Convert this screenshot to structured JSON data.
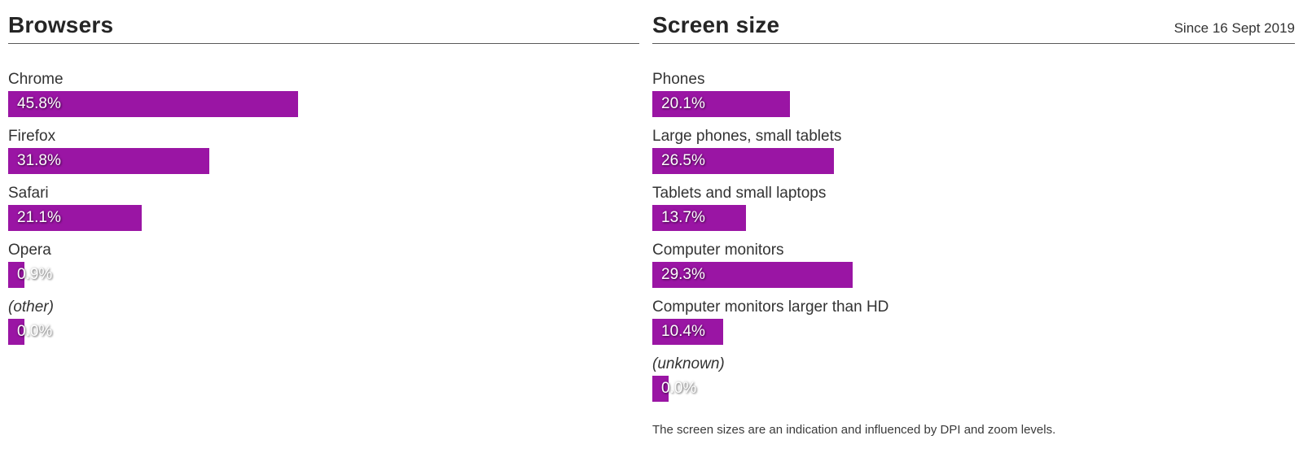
{
  "accent_color": "#9a15a4",
  "browsers": {
    "title": "Browsers",
    "rows": [
      {
        "label": "Chrome",
        "value": 45.8,
        "display": "45.8%"
      },
      {
        "label": "Firefox",
        "value": 31.8,
        "display": "31.8%"
      },
      {
        "label": "Safari",
        "value": 21.1,
        "display": "21.1%"
      },
      {
        "label": "Opera",
        "value": 0.9,
        "display": "0.9%"
      },
      {
        "label": "(other)",
        "value": 0.0,
        "display": "0.0%"
      }
    ]
  },
  "screen_size": {
    "title": "Screen size",
    "since": "Since 16 Sept 2019",
    "rows": [
      {
        "label": "Phones",
        "value": 20.1,
        "display": "20.1%"
      },
      {
        "label": "Large phones, small tablets",
        "value": 26.5,
        "display": "26.5%"
      },
      {
        "label": "Tablets and small laptops",
        "value": 13.7,
        "display": "13.7%"
      },
      {
        "label": "Computer monitors",
        "value": 29.3,
        "display": "29.3%"
      },
      {
        "label": "Computer monitors larger than HD",
        "value": 10.4,
        "display": "10.4%"
      },
      {
        "label": "(unknown)",
        "value": 0.0,
        "display": "0.0%"
      }
    ],
    "note": "The screen sizes are an indication and influenced by DPI and zoom levels."
  },
  "chart_data": [
    {
      "type": "bar",
      "orientation": "horizontal",
      "title": "Browsers",
      "categories": [
        "Chrome",
        "Firefox",
        "Safari",
        "Opera",
        "(other)"
      ],
      "values": [
        45.8,
        31.8,
        21.1,
        0.9,
        0.0
      ],
      "unit": "%",
      "xlim": [
        0,
        100
      ],
      "bar_color": "#9a15a4",
      "grid": false,
      "legend": false,
      "value_labels": "inside-bar-start"
    },
    {
      "type": "bar",
      "orientation": "horizontal",
      "title": "Screen size",
      "subtitle": "Since 16 Sept 2019",
      "categories": [
        "Phones",
        "Large phones, small tablets",
        "Tablets and small laptops",
        "Computer monitors",
        "Computer monitors larger than HD",
        "(unknown)"
      ],
      "values": [
        20.1,
        26.5,
        13.7,
        29.3,
        10.4,
        0.0
      ],
      "unit": "%",
      "xlim": [
        0,
        100
      ],
      "bar_color": "#9a15a4",
      "grid": false,
      "legend": false,
      "value_labels": "inside-bar-start",
      "annotation": "The screen sizes are an indication and influenced by DPI and zoom levels."
    }
  ]
}
